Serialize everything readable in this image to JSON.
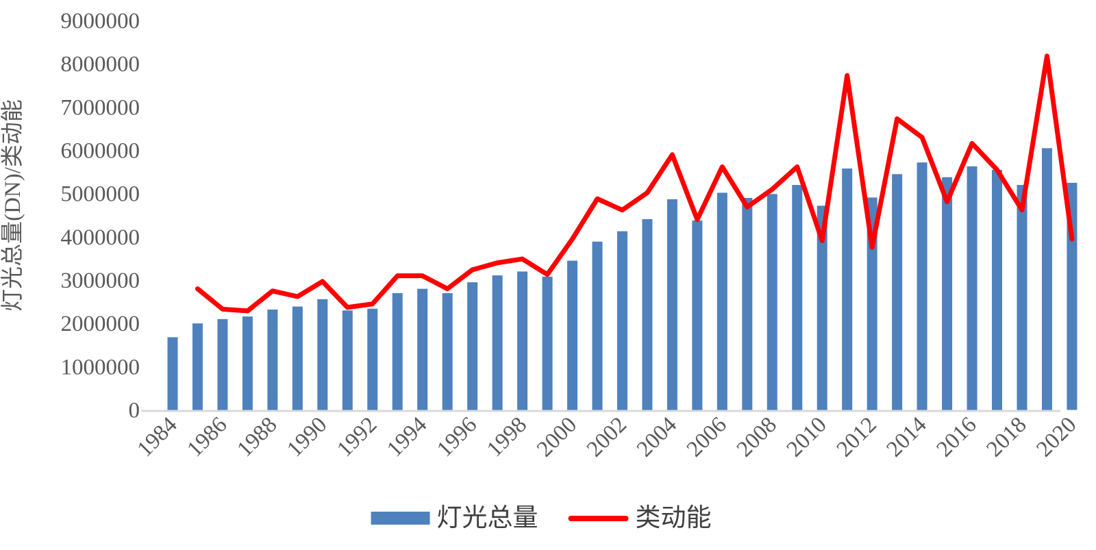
{
  "chart_data": {
    "type": "bar+line",
    "title": "",
    "xlabel": "",
    "ylabel": "灯光总量(DN)/类动能",
    "ylim": [
      0,
      9000000
    ],
    "ytick_step": 1000000,
    "ytick_labels": [
      "0",
      "1000000",
      "2000000",
      "3000000",
      "4000000",
      "5000000",
      "6000000",
      "7000000",
      "8000000",
      "9000000"
    ],
    "xtick_every": 2,
    "grid": false,
    "legend_position": "bottom",
    "axis_text_color": "#595959",
    "axis_line_color": "#D9D9D9",
    "categories": [
      1984,
      1985,
      1986,
      1987,
      1988,
      1989,
      1990,
      1991,
      1992,
      1993,
      1994,
      1995,
      1996,
      1997,
      1998,
      1999,
      2000,
      2001,
      2002,
      2003,
      2004,
      2005,
      2006,
      2007,
      2008,
      2009,
      2010,
      2011,
      2012,
      2013,
      2014,
      2015,
      2016,
      2017,
      2018,
      2019,
      2020
    ],
    "series": [
      {
        "name": "灯光总量",
        "type": "bar",
        "color": "#4F81BD",
        "values": [
          1680000,
          2000000,
          2100000,
          2160000,
          2320000,
          2390000,
          2560000,
          2300000,
          2340000,
          2700000,
          2800000,
          2700000,
          2950000,
          3110000,
          3200000,
          3080000,
          3450000,
          3890000,
          4130000,
          4410000,
          4870000,
          4380000,
          5020000,
          4900000,
          4990000,
          5200000,
          4720000,
          5580000,
          4910000,
          5450000,
          5720000,
          5380000,
          5630000,
          5550000,
          5200000,
          6050000,
          5250000
        ]
      },
      {
        "name": "类动能",
        "type": "line",
        "color": "#FF0000",
        "values": [
          null,
          2800000,
          2330000,
          2290000,
          2750000,
          2620000,
          2970000,
          2370000,
          2450000,
          3100000,
          3100000,
          2800000,
          3240000,
          3400000,
          3490000,
          3130000,
          3950000,
          4880000,
          4620000,
          5020000,
          5900000,
          4400000,
          5620000,
          4690000,
          5100000,
          5620000,
          3910000,
          7730000,
          3760000,
          6730000,
          6300000,
          4810000,
          6160000,
          5550000,
          4620000,
          8180000,
          3950000
        ]
      }
    ]
  }
}
